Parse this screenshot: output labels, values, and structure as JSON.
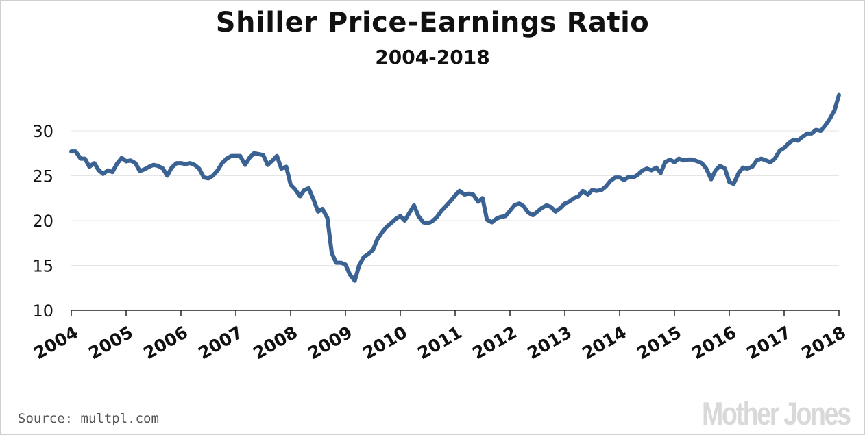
{
  "chart_data": {
    "type": "line",
    "title": "Shiller Price-Earnings Ratio",
    "subtitle": "2004-2018",
    "xlabel": "",
    "ylabel": "",
    "x_tick_labels": [
      "2004",
      "2005",
      "2006",
      "2007",
      "2008",
      "2009",
      "2010",
      "2011",
      "2012",
      "2013",
      "2014",
      "2015",
      "2016",
      "2017",
      "2018"
    ],
    "y_tick_labels": [
      "10",
      "15",
      "20",
      "25",
      "30"
    ],
    "xlim": [
      2004,
      2018
    ],
    "ylim": [
      10,
      34.5
    ],
    "grid": "horizontal",
    "line_color": "#3a6293",
    "series": [
      {
        "values": [
          [
            2004.0,
            27.7
          ],
          [
            2004.08,
            27.7
          ],
          [
            2004.17,
            26.9
          ],
          [
            2004.25,
            26.9
          ],
          [
            2004.33,
            26.0
          ],
          [
            2004.42,
            26.4
          ],
          [
            2004.5,
            25.6
          ],
          [
            2004.58,
            25.2
          ],
          [
            2004.67,
            25.6
          ],
          [
            2004.75,
            25.4
          ],
          [
            2004.83,
            26.3
          ],
          [
            2004.92,
            27.0
          ],
          [
            2005.0,
            26.6
          ],
          [
            2005.08,
            26.7
          ],
          [
            2005.17,
            26.4
          ],
          [
            2005.25,
            25.5
          ],
          [
            2005.33,
            25.7
          ],
          [
            2005.42,
            26.0
          ],
          [
            2005.5,
            26.2
          ],
          [
            2005.58,
            26.1
          ],
          [
            2005.67,
            25.8
          ],
          [
            2005.75,
            25.0
          ],
          [
            2005.83,
            25.9
          ],
          [
            2005.92,
            26.4
          ],
          [
            2006.0,
            26.4
          ],
          [
            2006.08,
            26.3
          ],
          [
            2006.17,
            26.4
          ],
          [
            2006.25,
            26.2
          ],
          [
            2006.33,
            25.8
          ],
          [
            2006.42,
            24.8
          ],
          [
            2006.5,
            24.7
          ],
          [
            2006.58,
            25.0
          ],
          [
            2006.67,
            25.6
          ],
          [
            2006.75,
            26.4
          ],
          [
            2006.83,
            26.9
          ],
          [
            2006.92,
            27.2
          ],
          [
            2007.0,
            27.2
          ],
          [
            2007.08,
            27.2
          ],
          [
            2007.17,
            26.2
          ],
          [
            2007.25,
            27.0
          ],
          [
            2007.33,
            27.5
          ],
          [
            2007.42,
            27.4
          ],
          [
            2007.5,
            27.3
          ],
          [
            2007.58,
            26.2
          ],
          [
            2007.67,
            26.7
          ],
          [
            2007.75,
            27.2
          ],
          [
            2007.83,
            25.8
          ],
          [
            2007.92,
            26.0
          ],
          [
            2008.0,
            24.0
          ],
          [
            2008.08,
            23.5
          ],
          [
            2008.17,
            22.7
          ],
          [
            2008.25,
            23.4
          ],
          [
            2008.33,
            23.6
          ],
          [
            2008.42,
            22.3
          ],
          [
            2008.5,
            21.0
          ],
          [
            2008.58,
            21.3
          ],
          [
            2008.67,
            20.3
          ],
          [
            2008.75,
            16.4
          ],
          [
            2008.83,
            15.3
          ],
          [
            2008.92,
            15.3
          ],
          [
            2009.0,
            15.1
          ],
          [
            2009.08,
            14.0
          ],
          [
            2009.17,
            13.3
          ],
          [
            2009.25,
            15.0
          ],
          [
            2009.33,
            15.9
          ],
          [
            2009.42,
            16.3
          ],
          [
            2009.5,
            16.7
          ],
          [
            2009.58,
            17.9
          ],
          [
            2009.67,
            18.7
          ],
          [
            2009.75,
            19.3
          ],
          [
            2009.83,
            19.7
          ],
          [
            2009.92,
            20.2
          ],
          [
            2010.0,
            20.5
          ],
          [
            2010.08,
            20.0
          ],
          [
            2010.17,
            20.9
          ],
          [
            2010.25,
            21.7
          ],
          [
            2010.33,
            20.5
          ],
          [
            2010.42,
            19.8
          ],
          [
            2010.5,
            19.7
          ],
          [
            2010.58,
            19.9
          ],
          [
            2010.67,
            20.4
          ],
          [
            2010.75,
            21.1
          ],
          [
            2010.83,
            21.6
          ],
          [
            2010.92,
            22.2
          ],
          [
            2011.0,
            22.8
          ],
          [
            2011.08,
            23.3
          ],
          [
            2011.17,
            22.9
          ],
          [
            2011.25,
            23.0
          ],
          [
            2011.33,
            22.9
          ],
          [
            2011.42,
            22.1
          ],
          [
            2011.5,
            22.5
          ],
          [
            2011.58,
            20.1
          ],
          [
            2011.67,
            19.8
          ],
          [
            2011.75,
            20.2
          ],
          [
            2011.83,
            20.4
          ],
          [
            2011.92,
            20.5
          ],
          [
            2012.0,
            21.1
          ],
          [
            2012.08,
            21.7
          ],
          [
            2012.17,
            21.9
          ],
          [
            2012.25,
            21.6
          ],
          [
            2012.33,
            20.9
          ],
          [
            2012.42,
            20.6
          ],
          [
            2012.5,
            21.0
          ],
          [
            2012.58,
            21.4
          ],
          [
            2012.67,
            21.7
          ],
          [
            2012.75,
            21.5
          ],
          [
            2012.83,
            21.0
          ],
          [
            2012.92,
            21.4
          ],
          [
            2013.0,
            21.9
          ],
          [
            2013.08,
            22.1
          ],
          [
            2013.17,
            22.5
          ],
          [
            2013.25,
            22.7
          ],
          [
            2013.33,
            23.3
          ],
          [
            2013.42,
            22.9
          ],
          [
            2013.5,
            23.4
          ],
          [
            2013.58,
            23.3
          ],
          [
            2013.67,
            23.4
          ],
          [
            2013.75,
            23.8
          ],
          [
            2013.83,
            24.4
          ],
          [
            2013.92,
            24.8
          ],
          [
            2014.0,
            24.8
          ],
          [
            2014.08,
            24.5
          ],
          [
            2014.17,
            24.9
          ],
          [
            2014.25,
            24.8
          ],
          [
            2014.33,
            25.1
          ],
          [
            2014.42,
            25.6
          ],
          [
            2014.5,
            25.8
          ],
          [
            2014.58,
            25.6
          ],
          [
            2014.67,
            25.9
          ],
          [
            2014.75,
            25.3
          ],
          [
            2014.83,
            26.5
          ],
          [
            2014.92,
            26.8
          ],
          [
            2015.0,
            26.5
          ],
          [
            2015.08,
            26.9
          ],
          [
            2015.17,
            26.7
          ],
          [
            2015.25,
            26.8
          ],
          [
            2015.33,
            26.8
          ],
          [
            2015.42,
            26.6
          ],
          [
            2015.5,
            26.4
          ],
          [
            2015.58,
            25.8
          ],
          [
            2015.67,
            24.6
          ],
          [
            2015.75,
            25.6
          ],
          [
            2015.83,
            26.1
          ],
          [
            2015.92,
            25.8
          ],
          [
            2016.0,
            24.3
          ],
          [
            2016.08,
            24.1
          ],
          [
            2016.17,
            25.3
          ],
          [
            2016.25,
            25.9
          ],
          [
            2016.33,
            25.8
          ],
          [
            2016.42,
            26.0
          ],
          [
            2016.5,
            26.7
          ],
          [
            2016.58,
            26.9
          ],
          [
            2016.67,
            26.7
          ],
          [
            2016.75,
            26.5
          ],
          [
            2016.83,
            26.9
          ],
          [
            2016.92,
            27.8
          ],
          [
            2017.0,
            28.1
          ],
          [
            2017.08,
            28.6
          ],
          [
            2017.17,
            29.0
          ],
          [
            2017.25,
            28.9
          ],
          [
            2017.33,
            29.3
          ],
          [
            2017.42,
            29.7
          ],
          [
            2017.5,
            29.7
          ],
          [
            2017.58,
            30.1
          ],
          [
            2017.67,
            30.0
          ],
          [
            2017.75,
            30.6
          ],
          [
            2017.83,
            31.3
          ],
          [
            2017.92,
            32.3
          ],
          [
            2018.0,
            34.0
          ]
        ]
      }
    ]
  },
  "source": "Source: multpl.com",
  "logo": "Mother Jones"
}
